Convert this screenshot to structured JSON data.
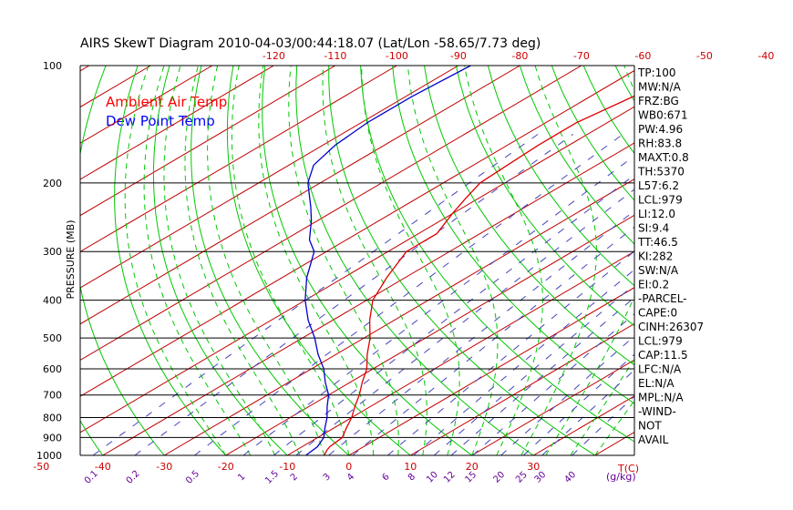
{
  "chart_data": {
    "type": "line",
    "title": "AIRS SkewT Diagram 2010-04-03/00:44:18.07 (Lat/Lon -58.65/7.73 deg)",
    "ylabel": "PRESSURE (MB)",
    "xlabel_bottom": "T(C)",
    "mixing_ratio_label": "(g/kg)",
    "y_scale": "log",
    "ylim": [
      1000,
      100
    ],
    "pressure_ticks": [
      100,
      200,
      300,
      400,
      500,
      600,
      700,
      800,
      900,
      1000
    ],
    "top_temp_ticks": [
      -120,
      -110,
      -100,
      -90,
      -80,
      -70,
      -60,
      -50,
      -40
    ],
    "bottom_temp_ticks": [
      -50,
      -40,
      -30,
      -20,
      -10,
      0,
      10,
      20,
      30
    ],
    "mixing_ratio_ticks": [
      "0.1",
      "0.2",
      "0.5",
      "1",
      "1.5",
      "2",
      "3",
      "4",
      "6",
      "8",
      "10",
      "12",
      "15",
      "20",
      "25",
      "30",
      "40"
    ],
    "legend": [
      {
        "label": "Ambient Air Temp",
        "color": "#ff0000"
      },
      {
        "label": "Dew Point Temp",
        "color": "#0000ff"
      }
    ],
    "series": [
      {
        "name": "Ambient Air Temp",
        "color": "#dd0000",
        "points": [
          [
            1000,
            -4
          ],
          [
            970,
            -5
          ],
          [
            950,
            -5.5
          ],
          [
            900,
            -6
          ],
          [
            850,
            -8
          ],
          [
            800,
            -10
          ],
          [
            750,
            -12.5
          ],
          [
            700,
            -15
          ],
          [
            650,
            -18
          ],
          [
            600,
            -21
          ],
          [
            550,
            -25
          ],
          [
            500,
            -29
          ],
          [
            450,
            -34
          ],
          [
            400,
            -39
          ],
          [
            350,
            -43
          ],
          [
            300,
            -47
          ],
          [
            270,
            -47
          ],
          [
            240,
            -50
          ],
          [
            220,
            -52
          ],
          [
            200,
            -54
          ],
          [
            180,
            -54.5
          ],
          [
            160,
            -55
          ],
          [
            140,
            -55
          ],
          [
            120,
            -53
          ],
          [
            100,
            -52
          ]
        ]
      },
      {
        "name": "Dew Point Temp",
        "color": "#0000cc",
        "points": [
          [
            1000,
            -7
          ],
          [
            950,
            -7.5
          ],
          [
            900,
            -9
          ],
          [
            850,
            -11.5
          ],
          [
            800,
            -14
          ],
          [
            750,
            -17
          ],
          [
            700,
            -20
          ],
          [
            650,
            -24
          ],
          [
            600,
            -28
          ],
          [
            550,
            -33
          ],
          [
            500,
            -38
          ],
          [
            450,
            -44
          ],
          [
            400,
            -50
          ],
          [
            350,
            -56
          ],
          [
            300,
            -62
          ],
          [
            280,
            -66
          ],
          [
            250,
            -71
          ],
          [
            230,
            -75
          ],
          [
            200,
            -82
          ],
          [
            180,
            -86
          ],
          [
            160,
            -88
          ],
          [
            140,
            -89
          ],
          [
            120,
            -89
          ],
          [
            100,
            -88
          ]
        ]
      }
    ],
    "indices": [
      "TP:100",
      "MW:N/A",
      "FRZ:BG",
      "WB0:671",
      "PW:4.96",
      "RH:83.8",
      "MAXT:0.8",
      "TH:5370",
      "L57:6.2",
      "LCL:979",
      "LI:12.0",
      "SI:9.4",
      "TT:46.5",
      "KI:282",
      "SW:N/A",
      "EI:0.2",
      "-PARCEL-",
      "CAPE:0",
      "CINH:26307",
      "LCL:979",
      "CAP:11.5",
      "LFC:N/A",
      "EL:N/A",
      "MPL:N/A",
      "-WIND-",
      "NOT",
      "AVAIL"
    ],
    "colors": {
      "isotherm": "#c00000",
      "dry_adiabat": "#00c800",
      "moist_adiabat": "#00c800",
      "mixing_ratio": "#4444bb",
      "isobar": "#000000",
      "tick_label": "#cc0000",
      "mixing_label": "#660099"
    }
  }
}
